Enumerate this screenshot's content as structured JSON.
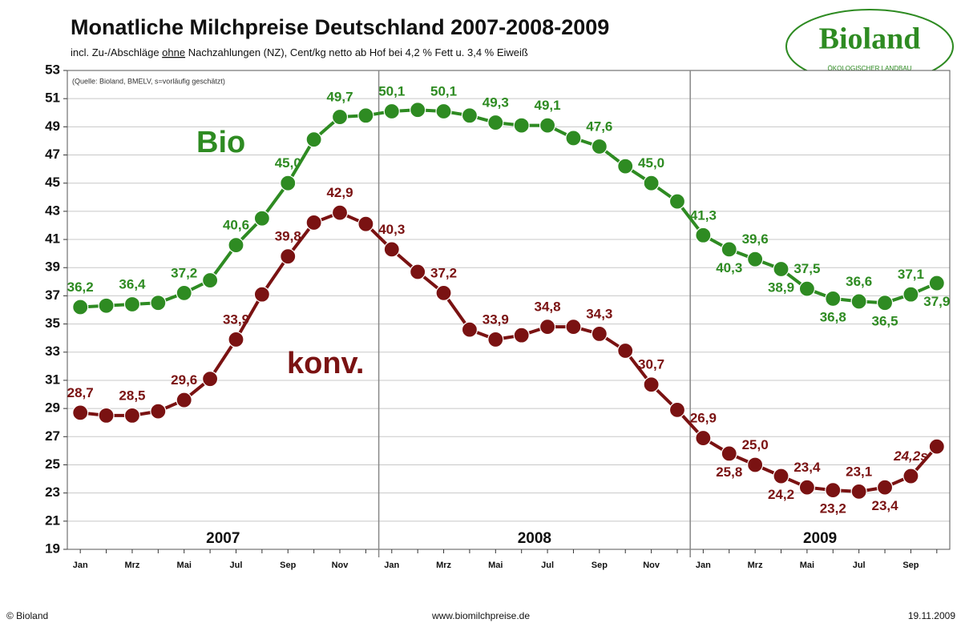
{
  "chart_data": {
    "type": "line",
    "title": "Monatliche Milchpreise Deutschland 2007-2008-2009",
    "subtitle": [
      "incl. Zu-/Abschläge ",
      "ohne",
      " Nachzahlungen (NZ), Cent/kg netto ab Hof bei 4,2 % Fett u. 3,4 % Eiweiß"
    ],
    "source": "(Quelle: Bioland,  BMELV, s=vorläufig geschätzt)",
    "logo": {
      "name": "Bioland",
      "tagline": "ÖKOLOGISCHER LANDBAU"
    },
    "years": [
      "2007",
      "2008",
      "2009"
    ],
    "categories": [
      "Jan",
      null,
      "Mrz",
      null,
      "Mai",
      null,
      "Jul",
      null,
      "Sep",
      null,
      "Nov",
      null,
      "Jan",
      null,
      "Mrz",
      null,
      "Mai",
      null,
      "Jul",
      null,
      "Sep",
      null,
      "Nov",
      null,
      "Jan",
      null,
      "Mrz",
      null,
      "Mai",
      null,
      "Jul",
      null,
      "Sep",
      null
    ],
    "series": [
      {
        "name": "Bio",
        "color": "#2e8b22",
        "values": [
          36.2,
          36.3,
          36.4,
          36.5,
          37.2,
          38.1,
          40.6,
          42.5,
          45.0,
          48.1,
          49.7,
          49.8,
          50.1,
          50.2,
          50.1,
          49.8,
          49.3,
          49.1,
          49.1,
          48.2,
          47.6,
          46.2,
          45.0,
          43.7,
          41.3,
          40.3,
          39.6,
          38.9,
          37.5,
          36.8,
          36.6,
          36.5,
          37.1,
          37.9
        ],
        "value_labels": [
          "36,2",
          null,
          "36,4",
          null,
          "37,2",
          null,
          "40,6",
          null,
          "45,0",
          null,
          "49,7",
          null,
          "50,1",
          null,
          "50,1",
          null,
          "49,3",
          null,
          "49,1",
          null,
          "47,6",
          null,
          "45,0",
          null,
          "41,3",
          "40,3",
          "39,6",
          "38,9",
          "37,5",
          "36,8",
          "36,6",
          "36,5",
          "37,1",
          "37,9"
        ]
      },
      {
        "name": "konv.",
        "color": "#7a1212",
        "values": [
          28.7,
          28.5,
          28.5,
          28.8,
          29.6,
          31.1,
          33.9,
          37.1,
          39.8,
          42.2,
          42.9,
          42.1,
          40.3,
          38.7,
          37.2,
          34.6,
          33.9,
          34.2,
          34.8,
          34.8,
          34.3,
          33.1,
          30.7,
          28.9,
          26.9,
          25.8,
          25.0,
          24.2,
          23.4,
          23.2,
          23.1,
          23.4,
          24.2,
          26.3
        ],
        "value_labels": [
          "28,7",
          null,
          "28,5",
          null,
          "29,6",
          null,
          "33,9",
          null,
          "39,8",
          null,
          "42,9",
          null,
          "40,3",
          null,
          "37,2",
          null,
          "33,9",
          null,
          "34,8",
          null,
          "34,3",
          null,
          "30,7",
          null,
          "26,9",
          "25,8",
          "25,0",
          "24,2",
          "23,4",
          "23,2",
          "23,1",
          "23,4",
          "24,2s",
          null
        ]
      }
    ],
    "ylim": [
      19,
      53
    ],
    "yticks": [
      19,
      21,
      23,
      25,
      27,
      29,
      31,
      33,
      35,
      37,
      39,
      41,
      43,
      45,
      47,
      49,
      51,
      53
    ],
    "grid": true,
    "footer": [
      "© Bioland",
      "www.biomilchpreise.de",
      "19.11.2009"
    ]
  }
}
